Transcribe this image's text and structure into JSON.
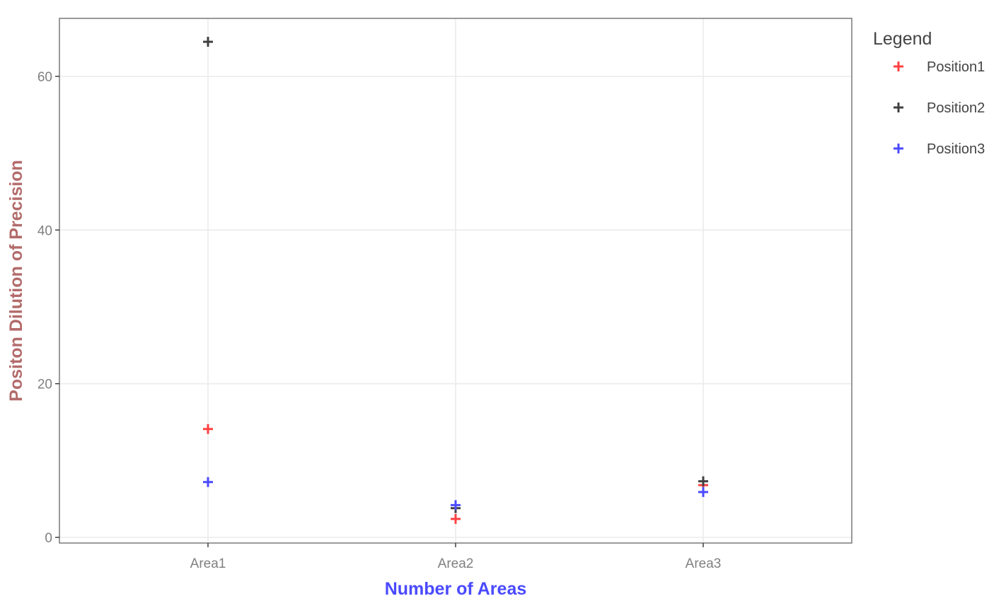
{
  "chart_data": {
    "type": "scatter",
    "title": "",
    "xlabel": "Number of Areas",
    "ylabel": "Positon Dilution of Precision",
    "categories": [
      "Area1",
      "Area2",
      "Area3"
    ],
    "ylim": [
      -0.8,
      67.4
    ],
    "yticks": [
      0,
      20,
      40,
      60
    ],
    "grid": true,
    "legend": {
      "title": "Legend",
      "position": "right"
    },
    "marker": "plus",
    "series": [
      {
        "name": "Position1",
        "color": "#ff4040",
        "values": [
          14.1,
          2.4,
          6.8
        ]
      },
      {
        "name": "Position2",
        "color": "#404040",
        "values": [
          64.5,
          3.8,
          7.3
        ]
      },
      {
        "name": "Position3",
        "color": "#4a4aff",
        "values": [
          7.2,
          4.2,
          5.9
        ]
      }
    ],
    "colors": {
      "xlabel": "#4a4aff",
      "ylabel": "#b36b6b",
      "grid": "#ebebeb",
      "panel_border": "#808080"
    }
  }
}
